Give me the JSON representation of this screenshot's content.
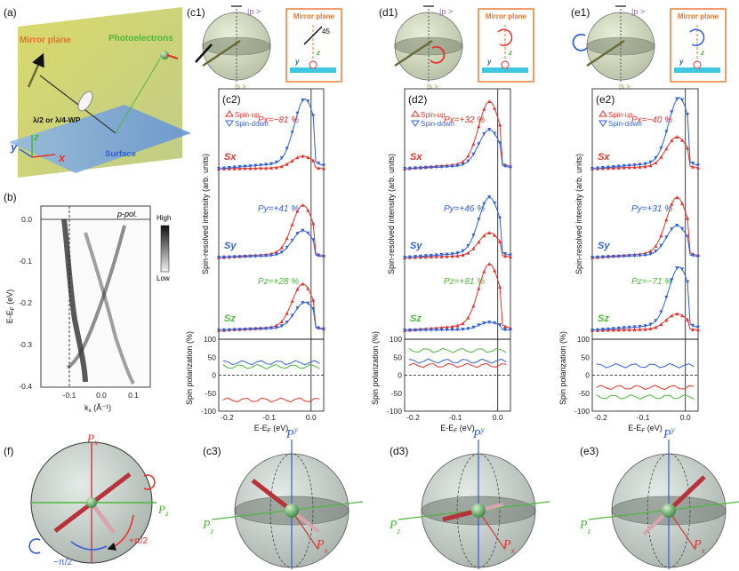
{
  "panel_labels": {
    "a": "(a)",
    "b": "(b)",
    "c1": "(c1)",
    "d1": "(d1)",
    "e1": "(e1)",
    "c2": "(c2)",
    "d2": "(d2)",
    "e2": "(e2)",
    "f": "(f)",
    "c3": "(c3)",
    "d3": "(d3)",
    "e3": "(e3)"
  },
  "panel_a": {
    "mirror_plane": "Mirror plane",
    "photoelectrons": "Photoelectrons",
    "waveplate": "λ/2 or λ/4-WP",
    "surface": "Surface",
    "axis_x": "x",
    "axis_y": "y",
    "axis_z": "z"
  },
  "panel_b": {
    "pol_label": "p-pol.",
    "colorbar_high": "High",
    "colorbar_low": "Low",
    "ylabel": "E-E",
    "ylabel_sub": "F",
    "ylabel_unit": " (eV)",
    "xlabel": "k",
    "xlabel_sub": "x",
    "xlabel_unit": " (Å⁻¹)",
    "yticks": [
      "0.0",
      "-0.1",
      "-0.2",
      "-0.3",
      "-0.4"
    ],
    "xticks": [
      "-0.1",
      "0.0",
      "0.1"
    ]
  },
  "insets": {
    "mirror_title": "Mirror plane",
    "ket_p": "|p >",
    "ket_s": "|s >",
    "angle": "45",
    "axis_y": "y",
    "axis_z": "z"
  },
  "spectra": {
    "ylabel": "Spin-resolved intensity (arb. units)",
    "legend_up": "Spin-up",
    "legend_down": "Spin-down",
    "comp_x": "Sx",
    "comp_y": "Sy",
    "comp_z": "Sz",
    "pol_ylabel": "Spin polarization (%)",
    "pol_yticks": [
      "100",
      "50",
      "0",
      "-50",
      "-100"
    ],
    "xticks": [
      "-0.2",
      "-0.1",
      "0.0"
    ],
    "xlabel": "E-E",
    "xlabel_sub": "F",
    "xlabel_unit": " (eV)"
  },
  "colors": {
    "spin_up": "#e8312a",
    "spin_down": "#2f5fd8",
    "pz": "#4cb83a",
    "mirror": "#e8742a"
  },
  "chart_data": [
    {
      "type": "line",
      "panel": "c2",
      "title": "(c2)",
      "x_range": [
        -0.22,
        0.03
      ],
      "series": [
        {
          "name": "Sx Spin-up",
          "peak_energy": -0.02,
          "peak_rel": 0.18
        },
        {
          "name": "Sx Spin-down",
          "peak_energy": -0.015,
          "peak_rel": 0.98
        },
        {
          "name": "Sy Spin-up",
          "peak_energy": -0.02,
          "peak_rel": 0.74
        },
        {
          "name": "Sy Spin-down",
          "peak_energy": -0.02,
          "peak_rel": 0.38
        },
        {
          "name": "Sz Spin-up",
          "peak_energy": -0.02,
          "peak_rel": 0.7
        },
        {
          "name": "Sz Spin-down",
          "peak_energy": -0.015,
          "peak_rel": 0.42
        }
      ],
      "polarization": {
        "Px": "Px=−81 %",
        "Py": "Py=+41 %",
        "Pz": "Pz=+28 %",
        "Px_value": -81,
        "Py_value": 41,
        "Pz_value": 28
      }
    },
    {
      "type": "line",
      "panel": "d2",
      "title": "(d2)",
      "x_range": [
        -0.22,
        0.03
      ],
      "series": [
        {
          "name": "Sx Spin-up",
          "peak_energy": -0.02,
          "peak_rel": 0.95
        },
        {
          "name": "Sx Spin-down",
          "peak_energy": -0.02,
          "peak_rel": 0.55
        },
        {
          "name": "Sy Spin-up",
          "peak_energy": -0.02,
          "peak_rel": 0.35
        },
        {
          "name": "Sy Spin-down",
          "peak_energy": -0.02,
          "peak_rel": 0.85
        },
        {
          "name": "Sz Spin-up",
          "peak_energy": -0.02,
          "peak_rel": 1.0
        },
        {
          "name": "Sz Spin-down",
          "peak_energy": -0.02,
          "peak_rel": 0.12
        }
      ],
      "polarization": {
        "Px": "Px=+32 %",
        "Py": "Py=+46 %",
        "Pz": "Pz=+81 %",
        "Px_value": 32,
        "Py_value": 46,
        "Pz_value": 81
      }
    },
    {
      "type": "line",
      "panel": "e2",
      "title": "(e2)",
      "x_range": [
        -0.22,
        0.03
      ],
      "series": [
        {
          "name": "Sx Spin-up",
          "peak_energy": -0.02,
          "peak_rel": 0.45
        },
        {
          "name": "Sx Spin-down",
          "peak_energy": -0.015,
          "peak_rel": 1.0
        },
        {
          "name": "Sy Spin-up",
          "peak_energy": -0.02,
          "peak_rel": 0.85
        },
        {
          "name": "Sy Spin-down",
          "peak_energy": -0.02,
          "peak_rel": 0.45
        },
        {
          "name": "Sz Spin-up",
          "peak_energy": -0.02,
          "peak_rel": 0.25
        },
        {
          "name": "Sz Spin-down",
          "peak_energy": -0.015,
          "peak_rel": 0.95
        }
      ],
      "polarization": {
        "Px": "Px=−40 %",
        "Py": "Py=+31 %",
        "Pz": "Pz=−71 %",
        "Px_value": -40,
        "Py_value": 31,
        "Pz_value": -71
      }
    }
  ],
  "sphere_f": {
    "px": "P",
    "px_sub": "x",
    "pz": "P",
    "pz_sub": "z",
    "plus_pi2": "+π/2",
    "minus_pi2": "−π/2"
  },
  "sphere3": {
    "py": "P",
    "py_sub": "y",
    "pz": "P",
    "pz_sub": "z",
    "px": "P",
    "px_sub": "x"
  }
}
